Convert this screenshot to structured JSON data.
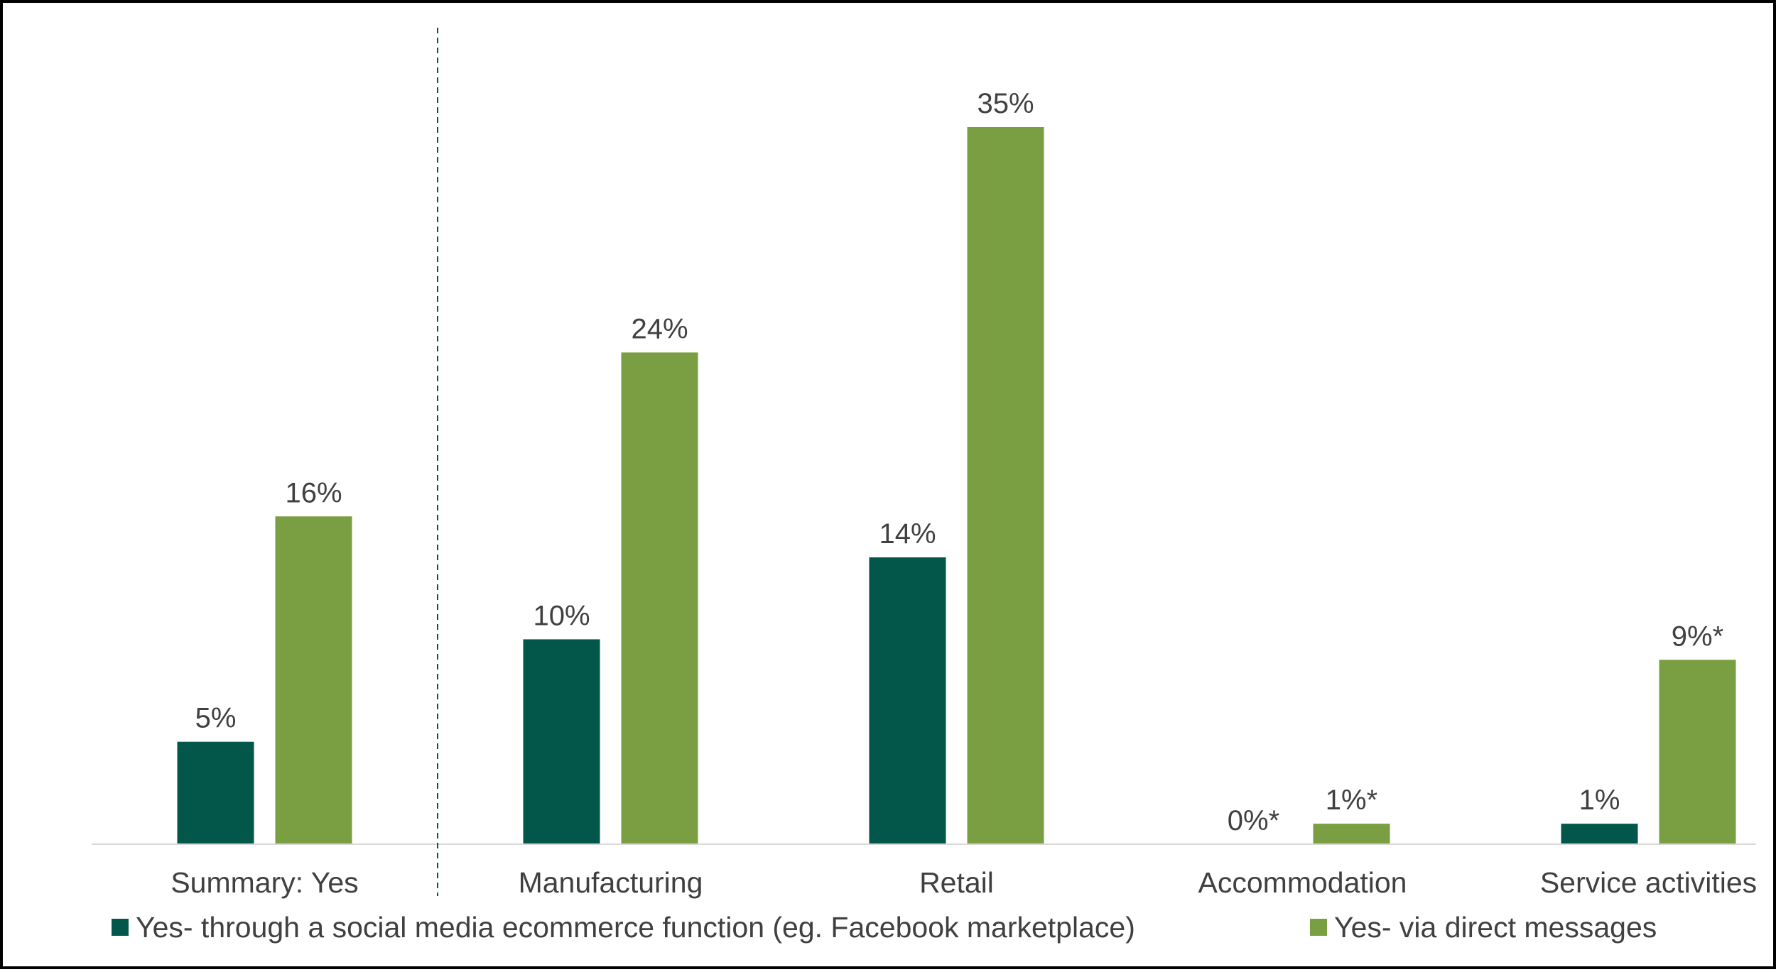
{
  "chart_data": {
    "type": "bar",
    "categories": [
      "Summary: Yes",
      "Manufacturing",
      "Retail",
      "Accommodation",
      "Service activities"
    ],
    "series": [
      {
        "name": "Yes- through a social media ecommerce function (eg. Facebook marketplace)",
        "color": "#03574A",
        "values": [
          5,
          10,
          14,
          0,
          1
        ],
        "labels": [
          "5%",
          "10%",
          "14%",
          "0%*",
          "1%"
        ]
      },
      {
        "name": "Yes- via direct messages",
        "color": "#7A9E42",
        "values": [
          16,
          24,
          35,
          1,
          9
        ],
        "labels": [
          "16%",
          "24%",
          "35%",
          "1%*",
          "9%*"
        ]
      }
    ],
    "ylim": [
      0,
      35
    ],
    "grid": false,
    "separator_after_category": "Summary: Yes",
    "legend_position": "bottom",
    "title": "",
    "xlabel": "",
    "ylabel": ""
  }
}
